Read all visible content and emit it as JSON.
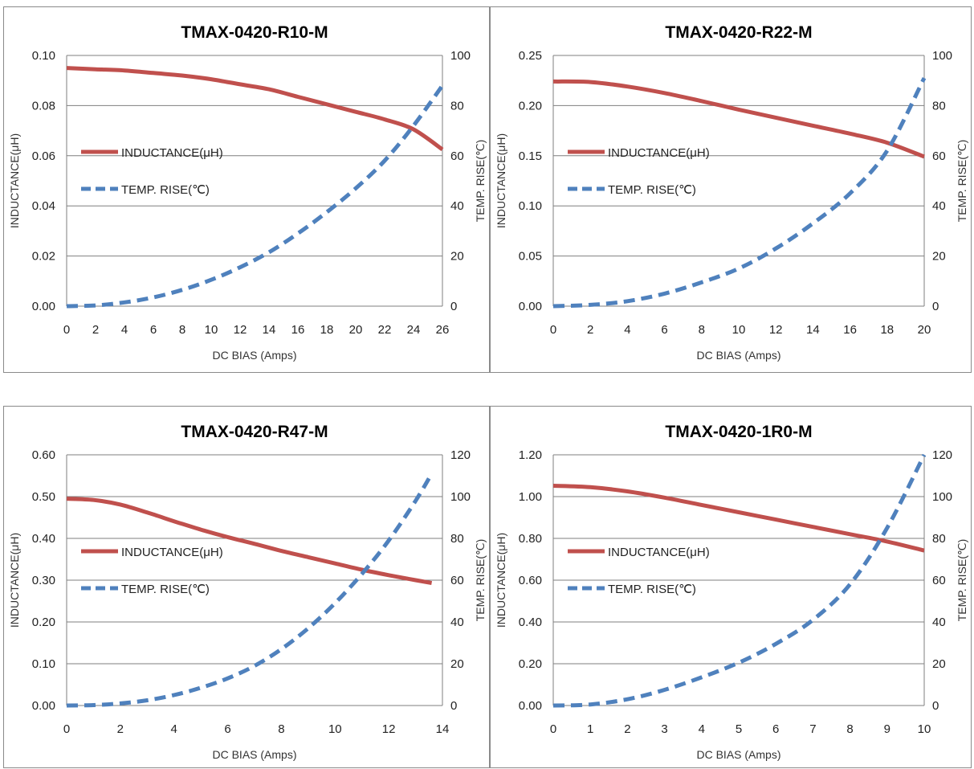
{
  "colors": {
    "inductance": "#c0504d",
    "inductance_light": "#e87b76",
    "temp": "#4f81bd",
    "temp_light": "#9dc3e6",
    "grid": "#7f7f7f",
    "background": "#ffffff"
  },
  "chart_data": [
    {
      "type": "line",
      "title": "TMAX-0420-R10-M",
      "xlabel": "DC BIAS  (Amps)",
      "ylabel": "INDUCTANCE(μH)",
      "y2label": "TEMP. RISE(℃)",
      "xlim": [
        0,
        26
      ],
      "ylim": [
        0,
        0.1
      ],
      "y2lim": [
        0,
        100
      ],
      "x_ticks": [
        "0",
        "2",
        "4",
        "6",
        "8",
        "10",
        "12",
        "14",
        "16",
        "18",
        "20",
        "22",
        "24",
        "26"
      ],
      "y_ticks": [
        "0.00",
        "0.02",
        "0.04",
        "0.06",
        "0.08",
        "0.10"
      ],
      "y2_ticks": [
        "0",
        "20",
        "40",
        "60",
        "80",
        "100"
      ],
      "grid": true,
      "legend_position": "left-middle",
      "series": [
        {
          "name": "INDUCTANCE(μH)",
          "axis": "left",
          "style": "solid",
          "color": "#c0504d",
          "x": [
            0,
            2,
            4,
            6,
            8,
            10,
            12,
            14,
            16,
            18,
            20,
            22,
            24,
            26
          ],
          "y": [
            0.095,
            0.0945,
            0.094,
            0.093,
            0.092,
            0.0905,
            0.0885,
            0.0865,
            0.0835,
            0.0805,
            0.0775,
            0.0745,
            0.0705,
            0.0625
          ]
        },
        {
          "name": "TEMP. RISE(℃)",
          "axis": "right",
          "style": "dashed",
          "color": "#4f81bd",
          "x": [
            0,
            2,
            4,
            6,
            8,
            10,
            12,
            14,
            16,
            18,
            20,
            22,
            24,
            26
          ],
          "y": [
            0,
            0.3,
            1.5,
            3.5,
            6.5,
            10.5,
            15.5,
            21.5,
            29,
            37.5,
            47,
            58,
            72,
            88
          ]
        }
      ]
    },
    {
      "type": "line",
      "title": "TMAX-0420-R22-M",
      "xlabel": "DC BIAS  (Amps)",
      "ylabel": "INDUCTANCE(μH)",
      "y2label": "TEMP. RISE(℃)",
      "xlim": [
        0,
        20
      ],
      "ylim": [
        0,
        0.25
      ],
      "y2lim": [
        0,
        100
      ],
      "x_ticks": [
        "0",
        "2",
        "4",
        "6",
        "8",
        "10",
        "12",
        "14",
        "16",
        "18",
        "20"
      ],
      "y_ticks": [
        "0.00",
        "0.05",
        "0.10",
        "0.15",
        "0.20",
        "0.25"
      ],
      "y2_ticks": [
        "0",
        "20",
        "40",
        "60",
        "80",
        "100"
      ],
      "grid": true,
      "legend_position": "left-middle",
      "series": [
        {
          "name": "INDUCTANCE(μH)",
          "axis": "left",
          "style": "solid",
          "color": "#c0504d",
          "x": [
            0,
            2,
            4,
            6,
            8,
            10,
            12,
            14,
            16,
            18,
            20
          ],
          "y": [
            0.224,
            0.2235,
            0.219,
            0.2125,
            0.2045,
            0.196,
            0.188,
            0.18,
            0.172,
            0.163,
            0.149
          ]
        },
        {
          "name": "TEMP. RISE(℃)",
          "axis": "right",
          "style": "dashed",
          "color": "#4f81bd",
          "x": [
            0,
            2,
            4,
            6,
            8,
            10,
            12,
            14,
            16,
            18,
            20
          ],
          "y": [
            0,
            0.5,
            2,
            5,
            9.5,
            15,
            23,
            33,
            45,
            62,
            91
          ]
        }
      ]
    },
    {
      "type": "line",
      "title": "TMAX-0420-R47-M",
      "xlabel": "DC BIAS  (Amps)",
      "ylabel": "INDUCTANCE(μH)",
      "y2label": "TEMP. RISE(℃)",
      "xlim": [
        0,
        14
      ],
      "ylim": [
        0,
        0.6
      ],
      "y2lim": [
        0,
        120
      ],
      "x_ticks": [
        "0",
        "2",
        "4",
        "6",
        "8",
        "10",
        "12",
        "14"
      ],
      "y_ticks": [
        "0.00",
        "0.10",
        "0.20",
        "0.30",
        "0.40",
        "0.50",
        "0.60"
      ],
      "y2_ticks": [
        "0",
        "20",
        "40",
        "60",
        "80",
        "100",
        "120"
      ],
      "grid": true,
      "legend_position": "left-middle",
      "series": [
        {
          "name": "INDUCTANCE(μH)",
          "axis": "left",
          "style": "solid",
          "color": "#c0504d",
          "x": [
            0,
            1,
            2,
            3,
            4,
            5,
            6,
            7,
            8,
            9,
            10,
            11,
            12,
            13,
            13.6
          ],
          "y": [
            0.495,
            0.492,
            0.481,
            0.462,
            0.441,
            0.421,
            0.403,
            0.387,
            0.37,
            0.355,
            0.34,
            0.325,
            0.312,
            0.3,
            0.293
          ]
        },
        {
          "name": "TEMP. RISE(℃)",
          "axis": "right",
          "style": "dashed",
          "color": "#4f81bd",
          "x": [
            0,
            1,
            2,
            3,
            4,
            5,
            6,
            7,
            8,
            9,
            10,
            11,
            12,
            13,
            13.6
          ],
          "y": [
            0,
            0.2,
            1,
            2.5,
            5,
            8.5,
            13,
            19,
            27,
            37,
            49,
            63,
            79,
            98,
            111
          ]
        }
      ]
    },
    {
      "type": "line",
      "title": "TMAX-0420-1R0-M",
      "xlabel": "DC BIAS  (Amps)",
      "ylabel": "INDUCTANCE(μH)",
      "y2label": "TEMP. RISE(℃)",
      "xlim": [
        0,
        10
      ],
      "ylim": [
        0,
        1.2
      ],
      "y2lim": [
        0,
        120
      ],
      "x_ticks": [
        "0",
        "1",
        "2",
        "3",
        "4",
        "5",
        "6",
        "7",
        "8",
        "9",
        "10"
      ],
      "y_ticks": [
        "0.00",
        "0.20",
        "0.40",
        "0.60",
        "0.80",
        "1.00",
        "1.20"
      ],
      "y2_ticks": [
        "0",
        "20",
        "40",
        "60",
        "80",
        "100",
        "120"
      ],
      "grid": true,
      "legend_position": "left-middle",
      "series": [
        {
          "name": "INDUCTANCE(μH)",
          "axis": "left",
          "style": "solid",
          "color": "#c0504d",
          "x": [
            0,
            1,
            2,
            3,
            4,
            5,
            6,
            7,
            8,
            9,
            10
          ],
          "y": [
            1.052,
            1.045,
            1.025,
            0.995,
            0.96,
            0.925,
            0.89,
            0.855,
            0.82,
            0.785,
            0.742
          ]
        },
        {
          "name": "TEMP. RISE(℃)",
          "axis": "right",
          "style": "dashed",
          "color": "#4f81bd",
          "x": [
            0,
            1,
            2,
            3,
            4,
            5,
            6,
            7,
            8,
            9,
            10
          ],
          "y": [
            0,
            0.5,
            3,
            7.5,
            13.5,
            20.5,
            29.5,
            41,
            58,
            85,
            120
          ]
        }
      ]
    }
  ]
}
